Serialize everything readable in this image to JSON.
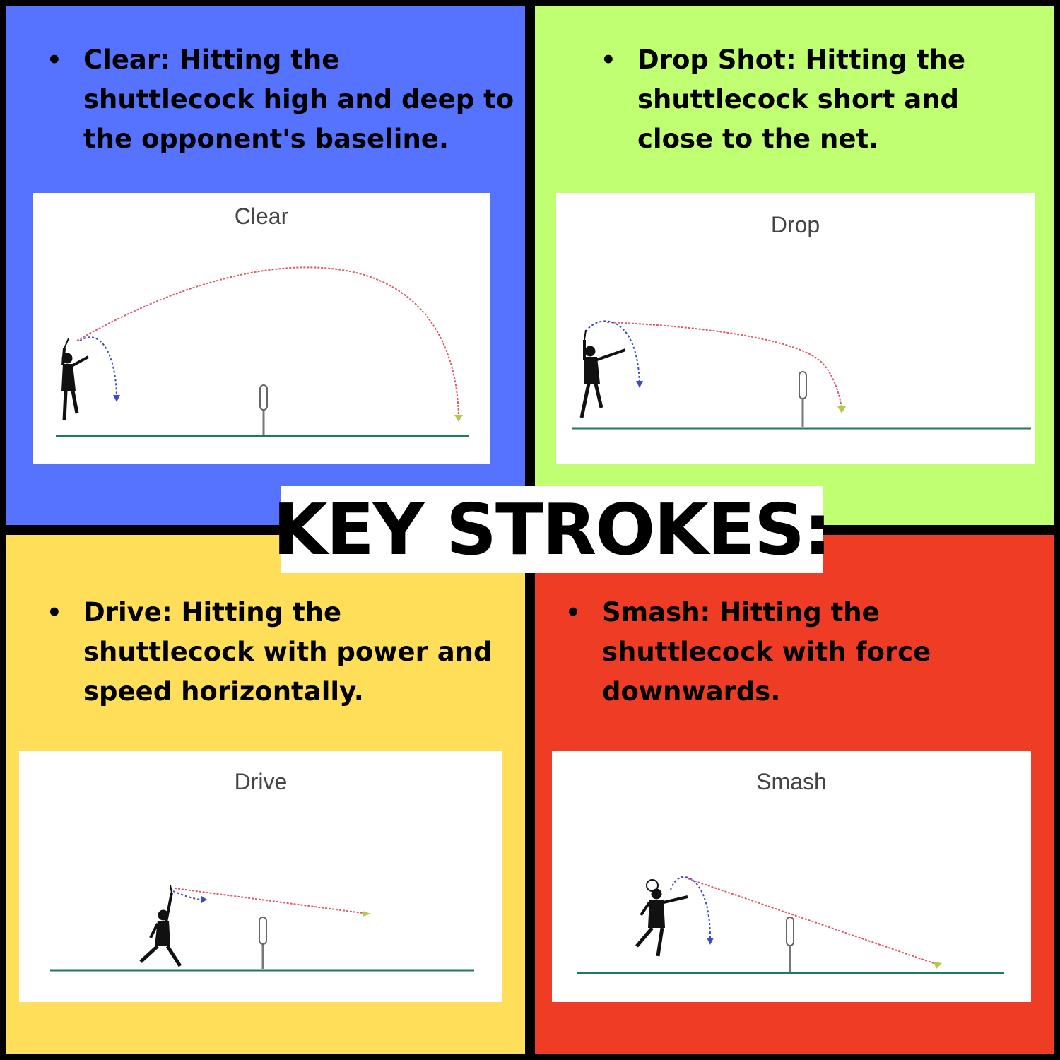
{
  "headline": "KEY STROKES:",
  "colors": {
    "border": "#000000",
    "clear_panel": "#5573FF",
    "drop_panel": "#C1FF72",
    "drive_panel": "#FFDE59",
    "smash_panel": "#EF3D25",
    "court_line": "#1E7A5C",
    "shuttle_path": "#E05A6A",
    "swing_path": "#3A4BD0"
  },
  "panels": {
    "clear": {
      "text": "Clear: Hitting the shuttlecock high and deep to the opponent's baseline.",
      "figure_title": "Clear"
    },
    "drop": {
      "text": "Drop Shot: Hitting the shuttlecock short and close to the net.",
      "figure_title": "Drop"
    },
    "drive": {
      "text": "Drive: Hitting the shuttlecock with power and speed horizontally.",
      "figure_title": "Drive"
    },
    "smash": {
      "text": "Smash: Hitting the shuttlecock with force downwards.",
      "figure_title": "Smash"
    }
  },
  "icons": {
    "bullet": "bullet-dot",
    "player": "badminton-player-icon",
    "net": "net-post-icon",
    "shuttle": "shuttlecock-icon"
  }
}
